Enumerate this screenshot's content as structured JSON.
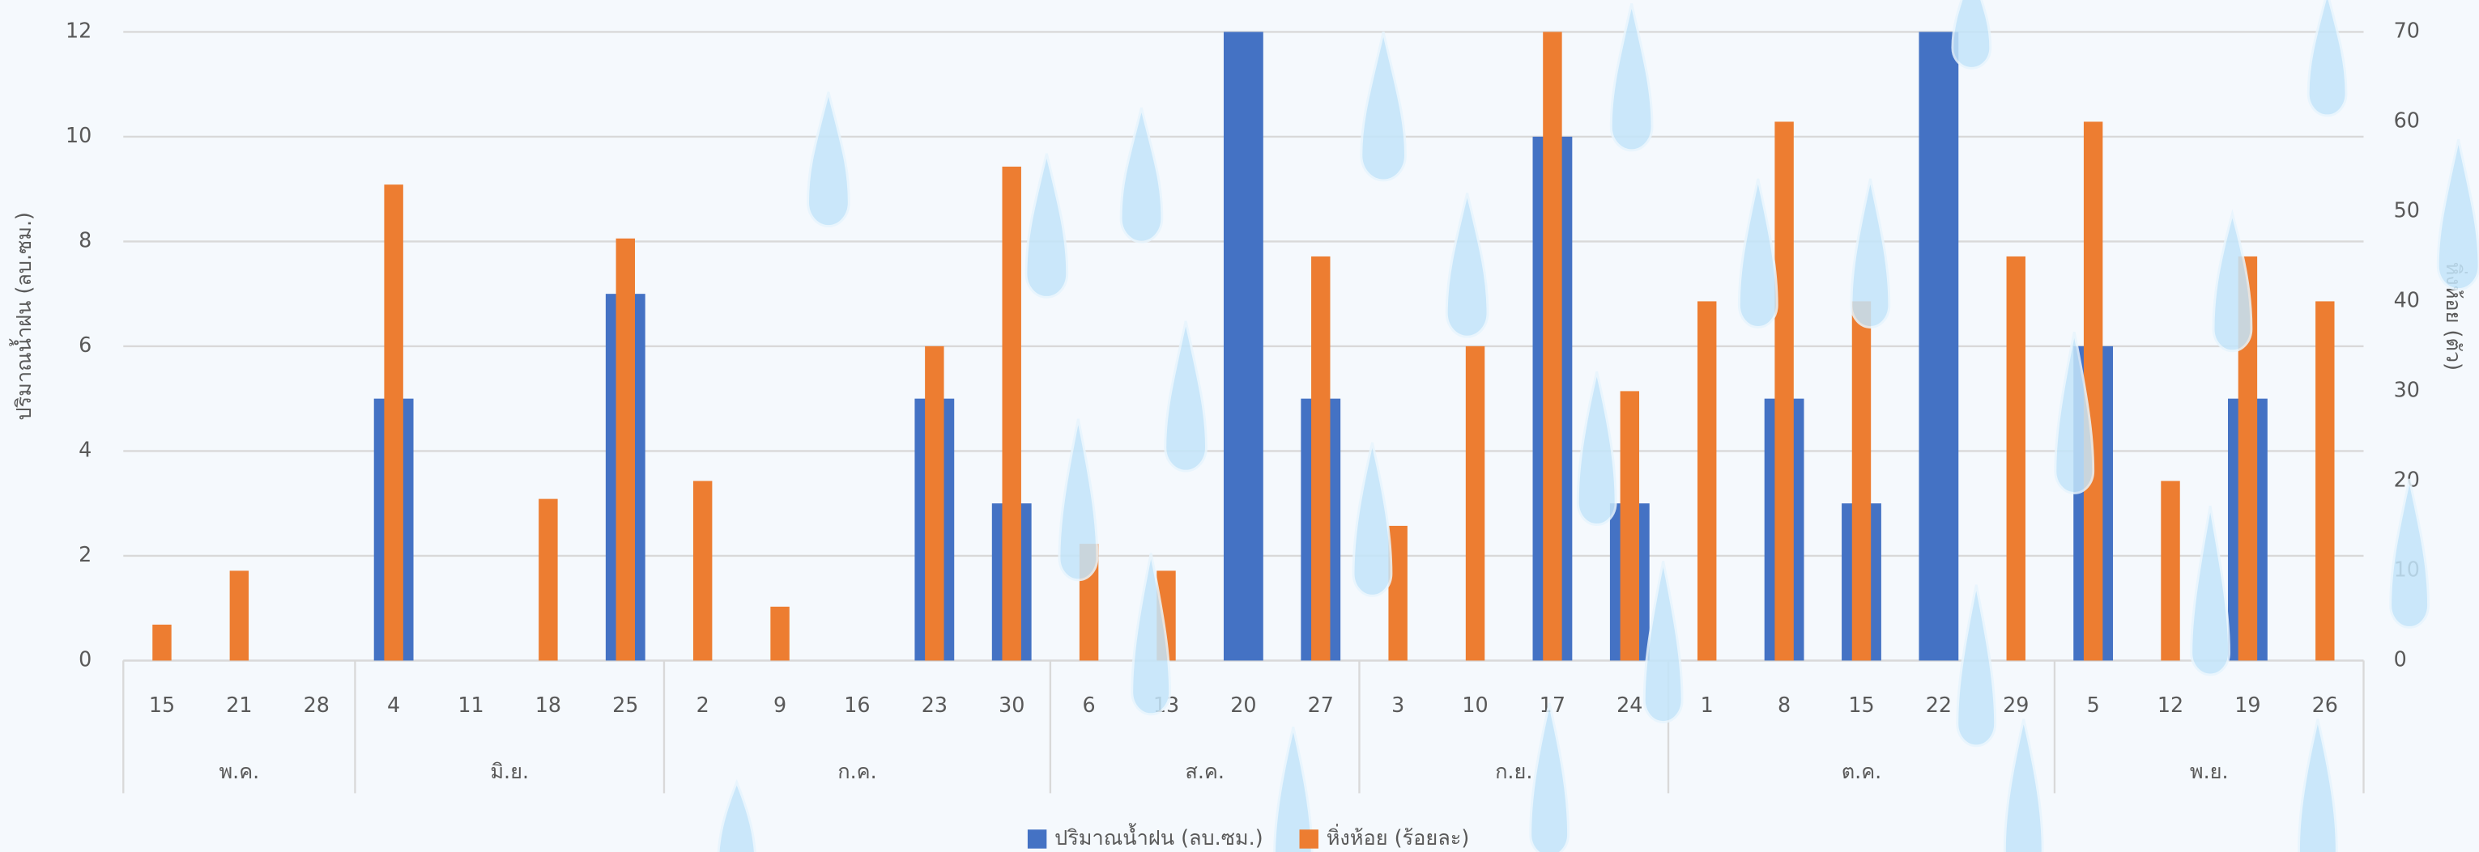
{
  "chart_data": {
    "type": "bar",
    "y_label": "ปริมาณน้ำฝน (ลบ.ซม.)",
    "y2_label": "หิ่งห้อย (ตัว)",
    "groups": [
      {
        "label": "พ.ค.",
        "categories": [
          "15",
          "21",
          "28"
        ]
      },
      {
        "label": "มิ.ย.",
        "categories": [
          "4",
          "11",
          "18",
          "25"
        ]
      },
      {
        "label": "ก.ค.",
        "categories": [
          "2",
          "9",
          "16",
          "23",
          "30"
        ]
      },
      {
        "label": "ส.ค.",
        "categories": [
          "6",
          "13",
          "20",
          "27"
        ]
      },
      {
        "label": "ก.ย.",
        "categories": [
          "3",
          "10",
          "17",
          "24"
        ]
      },
      {
        "label": "ต.ค.",
        "categories": [
          "1",
          "8",
          "15",
          "22",
          "29"
        ]
      },
      {
        "label": "พ.ย.",
        "categories": [
          "5",
          "12",
          "19",
          "26"
        ]
      }
    ],
    "series": [
      {
        "name": "ปริมาณน้ำฝน (ลบ.ซม.)",
        "color": "#4472c4",
        "values": [
          null,
          null,
          null,
          5,
          null,
          null,
          7,
          null,
          null,
          null,
          5,
          3,
          null,
          null,
          12,
          5,
          null,
          null,
          10,
          3,
          null,
          5,
          3,
          12,
          null,
          6,
          null,
          5,
          null
        ]
      },
      {
        "name": "หิ่งห้อย (ร้อยละ)",
        "color": "#ed7d31",
        "axis": "y2",
        "values": [
          4,
          10,
          null,
          53,
          null,
          18,
          47,
          20,
          6,
          null,
          35,
          55,
          13,
          10,
          null,
          45,
          15,
          35,
          70,
          30,
          40,
          60,
          40,
          null,
          45,
          60,
          20,
          45,
          40
        ]
      }
    ],
    "ylim": [
      0,
      12
    ],
    "yticks": [
      0,
      2,
      4,
      6,
      8,
      10,
      12
    ],
    "y2lim": [
      0,
      70
    ],
    "y2ticks": [
      0,
      10,
      20,
      30,
      40,
      50,
      60,
      70
    ],
    "grid": true,
    "legend": "bottom"
  }
}
